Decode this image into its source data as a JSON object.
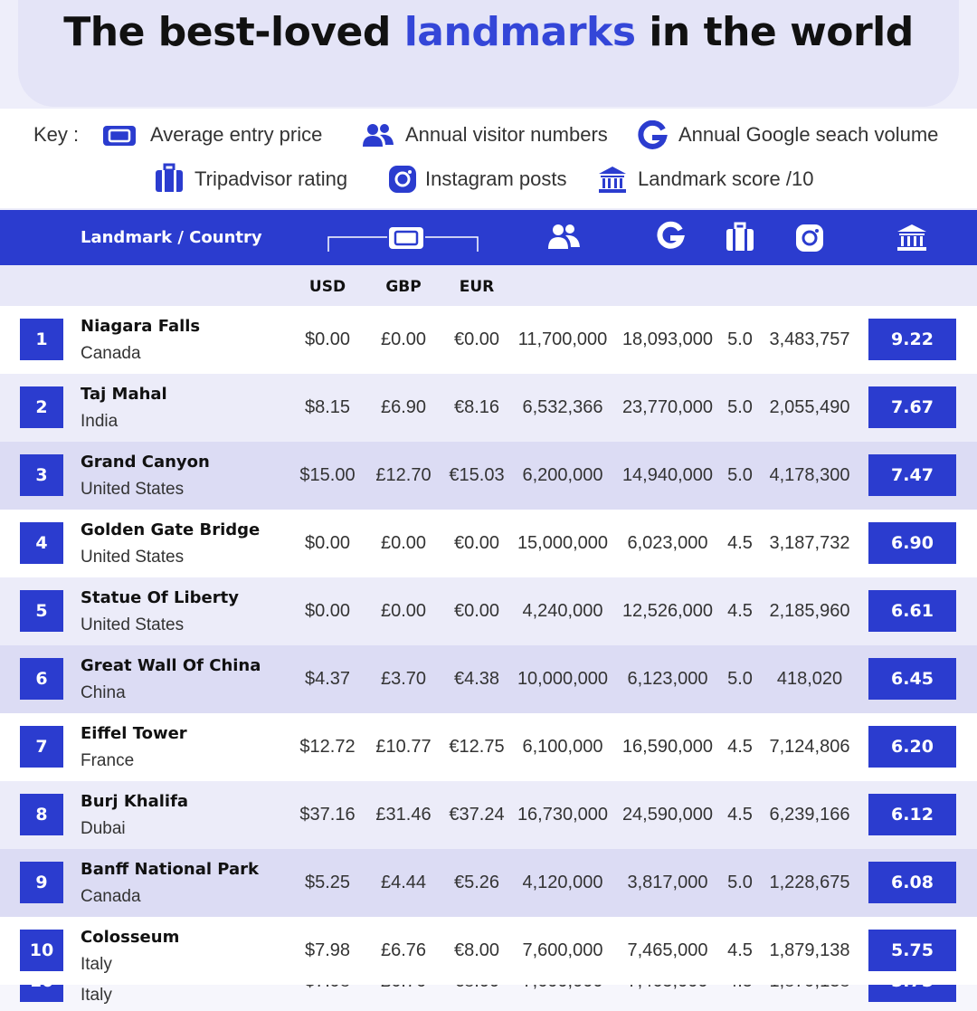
{
  "title": {
    "before": "The best-loved",
    "highlight": "landmarks",
    "after": "in the world"
  },
  "key": {
    "label": "Key :",
    "items": [
      "Average entry price",
      "Annual visitor numbers",
      "Annual Google seach volume",
      "Tripadvisor rating",
      "Instagram posts",
      "Landmark score /10"
    ]
  },
  "table": {
    "header": "Landmark / Country",
    "currencies": [
      "USD",
      "GBP",
      "EUR"
    ],
    "rows": [
      {
        "rank": "1",
        "name": "Niagara Falls",
        "country": "Canada",
        "usd": "$0.00",
        "gbp": "£0.00",
        "eur": "€0.00",
        "visitors": "11,700,000",
        "google": "18,093,000",
        "tripadvisor": "5.0",
        "instagram": "3,483,757",
        "score": "9.22"
      },
      {
        "rank": "2",
        "name": "Taj Mahal",
        "country": "India",
        "usd": "$8.15",
        "gbp": "£6.90",
        "eur": "€8.16",
        "visitors": "6,532,366",
        "google": "23,770,000",
        "tripadvisor": "5.0",
        "instagram": "2,055,490",
        "score": "7.67"
      },
      {
        "rank": "3",
        "name": "Grand Canyon",
        "country": "United States",
        "usd": "$15.00",
        "gbp": "£12.70",
        "eur": "€15.03",
        "visitors": "6,200,000",
        "google": "14,940,000",
        "tripadvisor": "5.0",
        "instagram": "4,178,300",
        "score": "7.47"
      },
      {
        "rank": "4",
        "name": "Golden Gate Bridge",
        "country": "United States",
        "usd": "$0.00",
        "gbp": "£0.00",
        "eur": "€0.00",
        "visitors": "15,000,000",
        "google": "6,023,000",
        "tripadvisor": "4.5",
        "instagram": "3,187,732",
        "score": "6.90"
      },
      {
        "rank": "5",
        "name": "Statue Of Liberty",
        "country": "United States",
        "usd": "$0.00",
        "gbp": "£0.00",
        "eur": "€0.00",
        "visitors": "4,240,000",
        "google": "12,526,000",
        "tripadvisor": "4.5",
        "instagram": "2,185,960",
        "score": "6.61"
      },
      {
        "rank": "6",
        "name": "Great Wall Of China",
        "country": "China",
        "usd": "$4.37",
        "gbp": "£3.70",
        "eur": "€4.38",
        "visitors": "10,000,000",
        "google": "6,123,000",
        "tripadvisor": "5.0",
        "instagram": "418,020",
        "score": "6.45"
      },
      {
        "rank": "7",
        "name": "Eiffel Tower",
        "country": "France",
        "usd": "$12.72",
        "gbp": "£10.77",
        "eur": "€12.75",
        "visitors": "6,100,000",
        "google": "16,590,000",
        "tripadvisor": "4.5",
        "instagram": "7,124,806",
        "score": "6.20"
      },
      {
        "rank": "8",
        "name": "Burj Khalifa",
        "country": "Dubai",
        "usd": "$37.16",
        "gbp": "£31.46",
        "eur": "€37.24",
        "visitors": "16,730,000",
        "google": "24,590,000",
        "tripadvisor": "4.5",
        "instagram": "6,239,166",
        "score": "6.12"
      },
      {
        "rank": "9",
        "name": "Banff National Park",
        "country": "Canada",
        "usd": "$5.25",
        "gbp": "£4.44",
        "eur": "€5.26",
        "visitors": "4,120,000",
        "google": "3,817,000",
        "tripadvisor": "5.0",
        "instagram": "1,228,675",
        "score": "6.08"
      },
      {
        "rank": "10",
        "name": "Colosseum",
        "country": "Italy",
        "usd": "$7.98",
        "gbp": "£6.76",
        "eur": "€8.00",
        "visitors": "7,600,000",
        "google": "7,465,000",
        "tripadvisor": "4.5",
        "instagram": "1,879,138",
        "score": "5.75"
      }
    ]
  }
}
